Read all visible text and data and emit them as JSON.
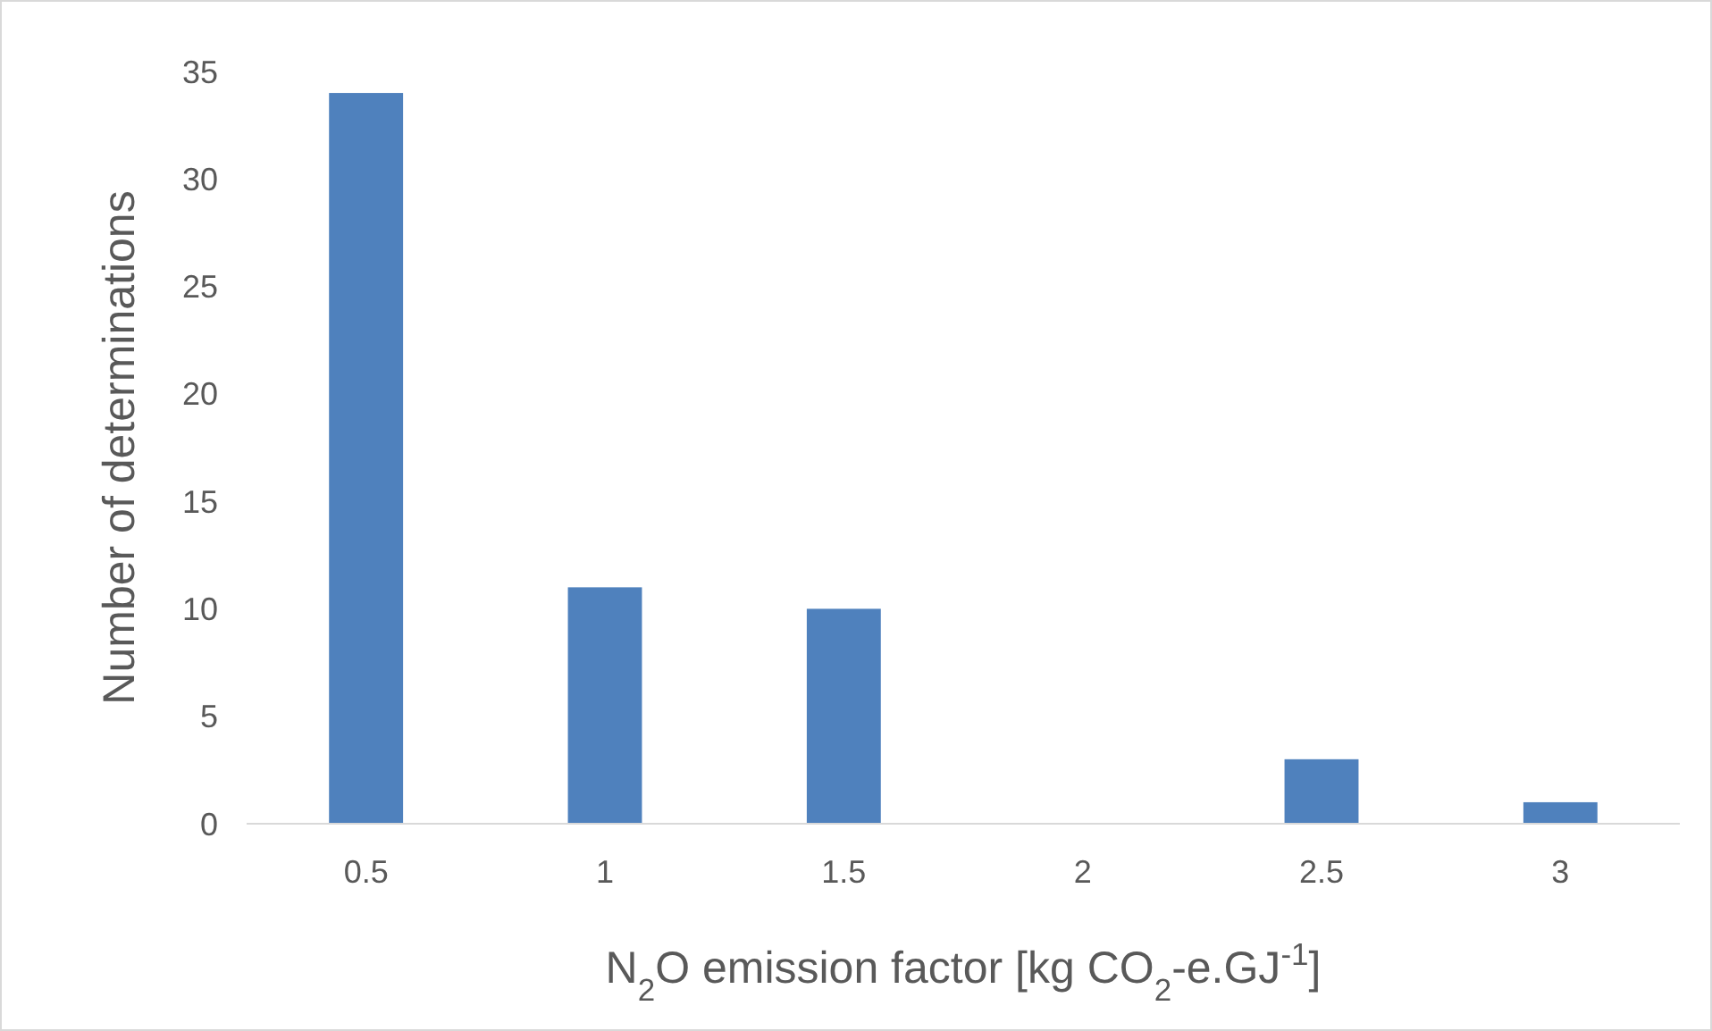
{
  "chart_data": {
    "type": "bar",
    "xlabel": "N$_{2}$O emission factor [kg CO$_{2}$-e.GJ$^{-1}$]",
    "ylabel": "Number of determinations",
    "categories": [
      "0.5",
      "1",
      "1.5",
      "2",
      "2.5",
      "3"
    ],
    "values": [
      34,
      11,
      10,
      0,
      3,
      1
    ],
    "color": "#4f81bd",
    "ylim": [
      0,
      35
    ],
    "yticks": [
      0,
      5,
      10,
      15,
      20,
      25,
      30,
      35
    ],
    "grid": false
  }
}
